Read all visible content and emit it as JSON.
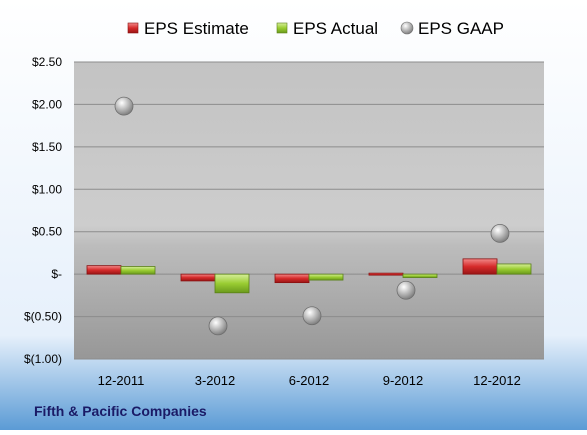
{
  "chart_data": {
    "type": "bar",
    "categories": [
      "12-2011",
      "3-2012",
      "6-2012",
      "9-2012",
      "12-2012"
    ],
    "series": [
      {
        "name": "EPS Estimate",
        "kind": "bar",
        "color": "#d62b2b",
        "values": [
          0.1,
          -0.08,
          -0.1,
          -0.01,
          0.18
        ]
      },
      {
        "name": "EPS Actual",
        "kind": "bar",
        "color": "#9acd32",
        "values": [
          0.09,
          -0.22,
          -0.07,
          -0.04,
          0.12
        ]
      },
      {
        "name": "EPS GAAP",
        "kind": "marker",
        "color": "#a8a8a8",
        "values": [
          1.98,
          -0.61,
          -0.49,
          -0.19,
          0.48
        ]
      }
    ],
    "yticks": [
      "$2.50",
      "$2.00",
      "$1.50",
      "$1.00",
      "$0.50",
      "$-",
      "$(0.50)",
      "$(1.00)"
    ],
    "ytick_values": [
      2.5,
      2.0,
      1.5,
      1.0,
      0.5,
      0,
      -0.5,
      -1.0
    ],
    "ylim": [
      -1.0,
      2.5
    ],
    "grid": true,
    "legend": "top",
    "footer": "Fifth & Pacific Companies"
  }
}
